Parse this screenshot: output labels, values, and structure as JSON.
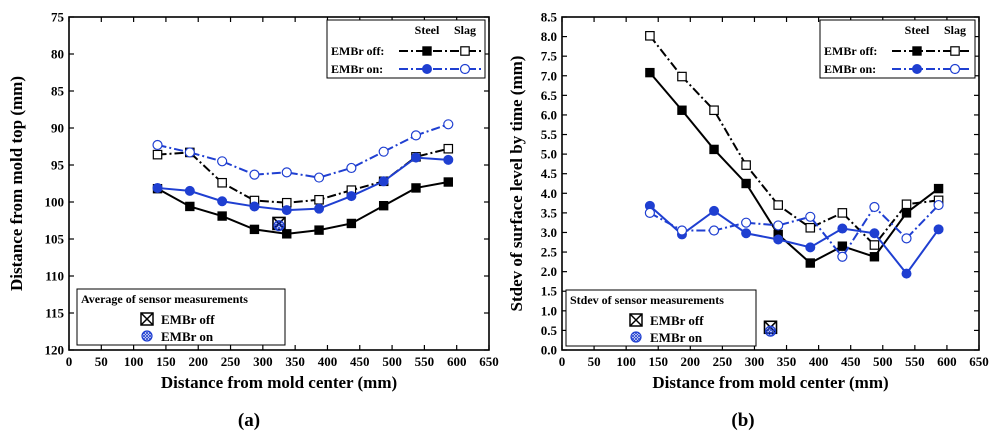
{
  "chart_data": [
    {
      "type": "line",
      "panel_label": "(a)",
      "xlabel": "Distance from mold center (mm)",
      "ylabel": "Distance from mold top (mm)",
      "xlim": [
        0,
        650
      ],
      "ylim": [
        120,
        75
      ],
      "y_inverted": true,
      "xticks": [
        "0",
        "50",
        "100",
        "150",
        "200",
        "250",
        "300",
        "350",
        "400",
        "450",
        "500",
        "550",
        "600",
        "650"
      ],
      "yticks": [
        "75",
        "80",
        "85",
        "90",
        "95",
        "100",
        "105",
        "110",
        "115",
        "120"
      ],
      "x": [
        137,
        187,
        237,
        287,
        337,
        387,
        437,
        487,
        537,
        587
      ],
      "series": [
        {
          "name": "EMBr off - Steel",
          "color": "#000000",
          "marker": "filled-square",
          "dash": "solid",
          "values": [
            98.2,
            100.6,
            101.9,
            103.7,
            104.3,
            103.8,
            102.9,
            100.5,
            98.1,
            97.3
          ]
        },
        {
          "name": "EMBr off - Slag",
          "color": "#000000",
          "marker": "open-square",
          "dash": "dashdot",
          "values": [
            93.6,
            93.3,
            97.4,
            99.8,
            100.1,
            99.7,
            98.4,
            97.2,
            93.9,
            92.8
          ]
        },
        {
          "name": "EMBr on - Steel",
          "color": "#1f3fd1",
          "marker": "filled-circle",
          "dash": "solid",
          "values": [
            98.1,
            98.5,
            99.9,
            100.6,
            101.1,
            100.9,
            99.2,
            97.2,
            94.0,
            94.3
          ]
        },
        {
          "name": "EMBr on - Slag",
          "color": "#1f3fd1",
          "marker": "open-circle",
          "dash": "dashdot",
          "values": [
            92.3,
            93.3,
            94.5,
            96.3,
            96.0,
            96.7,
            95.4,
            93.2,
            91.0,
            89.5
          ]
        }
      ],
      "sensor": {
        "x": 325,
        "off": 102.9,
        "on": 103.2
      },
      "legend": {
        "header_steel": "Steel",
        "header_slag": "Slag",
        "row1": "EMBr off:",
        "row2": "EMBr on:",
        "position": "top-right"
      },
      "sensor_legend": {
        "title": "Average of sensor measurements",
        "item1": "EMBr off",
        "item2": "EMBr on",
        "position": "bottom-left"
      }
    },
    {
      "type": "line",
      "panel_label": "(b)",
      "xlabel": "Distance from mold center (mm)",
      "ylabel": "Stdev of surface level by time (mm)",
      "xlim": [
        0,
        650
      ],
      "ylim": [
        0,
        8.5
      ],
      "xticks": [
        "0",
        "50",
        "100",
        "150",
        "200",
        "250",
        "300",
        "350",
        "400",
        "450",
        "500",
        "550",
        "600",
        "650"
      ],
      "yticks": [
        "0.0",
        "0.5",
        "1.0",
        "1.5",
        "2.0",
        "2.5",
        "3.0",
        "3.5",
        "4.0",
        "4.5",
        "5.0",
        "5.5",
        "6.0",
        "6.5",
        "7.0",
        "7.5",
        "8.0",
        "8.5"
      ],
      "x": [
        137,
        187,
        237,
        287,
        337,
        387,
        437,
        487,
        537,
        587
      ],
      "series": [
        {
          "name": "EMBr off - Steel",
          "color": "#000000",
          "marker": "filled-square",
          "dash": "solid",
          "values": [
            7.08,
            6.12,
            5.12,
            4.25,
            2.95,
            2.22,
            2.65,
            2.38,
            3.5,
            4.12
          ]
        },
        {
          "name": "EMBr off - Slag",
          "color": "#000000",
          "marker": "open-square",
          "dash": "dashdot",
          "values": [
            8.02,
            6.98,
            6.12,
            4.72,
            3.7,
            3.12,
            3.5,
            2.68,
            3.72,
            3.82
          ]
        },
        {
          "name": "EMBr on - Steel",
          "color": "#1f3fd1",
          "marker": "filled-circle",
          "dash": "solid",
          "values": [
            3.68,
            2.95,
            3.55,
            2.98,
            2.82,
            2.62,
            3.1,
            2.98,
            1.95,
            3.08
          ]
        },
        {
          "name": "EMBr on - Slag",
          "color": "#1f3fd1",
          "marker": "open-circle",
          "dash": "dashdot",
          "values": [
            3.5,
            3.05,
            3.05,
            3.25,
            3.18,
            3.4,
            2.38,
            3.65,
            2.85,
            3.7
          ]
        }
      ],
      "sensor": {
        "x": 325,
        "off": 0.58,
        "on": 0.48
      },
      "legend": {
        "header_steel": "Steel",
        "header_slag": "Slag",
        "row1": "EMBr off:",
        "row2": "EMBr on:",
        "position": "top-right"
      },
      "sensor_legend": {
        "title": "Stdev of sensor measurements",
        "item1": "EMBr off",
        "item2": "EMBr on",
        "position": "bottom-left"
      }
    }
  ]
}
